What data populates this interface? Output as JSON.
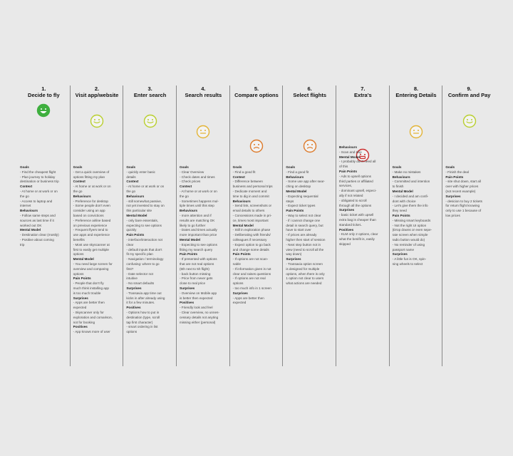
{
  "colors": {
    "divider": "#888888",
    "face_positive": "#3faf3f",
    "face_content": "#b9cf2e",
    "face_neutral": "#e3b437",
    "face_worried": "#dd7a2a",
    "face_negative": "#cc2f2f"
  },
  "columns": [
    {
      "number": "1.",
      "title": "Decide to fly",
      "mood": "very-happy",
      "notes": [
        {
          "h": true,
          "text": "Goals"
        },
        {
          "h": false,
          "text": "- Find the cheapest flight"
        },
        {
          "h": false,
          "text": "- Plan journey to holiday"
        },
        {
          "h": false,
          "text": "destination or business trip"
        },
        {
          "h": true,
          "text": "Context"
        },
        {
          "h": false,
          "text": "- At home or at work or on"
        },
        {
          "h": false,
          "text": "the go"
        },
        {
          "h": false,
          "text": "- Access to laptop and"
        },
        {
          "h": false,
          "text": "internet"
        },
        {
          "h": true,
          "text": "Behaviours"
        },
        {
          "h": false,
          "text": "- Follow same steps and"
        },
        {
          "h": false,
          "text": "sources as last time if it"
        },
        {
          "h": false,
          "text": "worked out OK"
        },
        {
          "h": true,
          "text": "Mental Model"
        },
        {
          "h": false,
          "text": "- Destination clear (mostly)"
        },
        {
          "h": false,
          "text": "- Positive about coming"
        },
        {
          "h": false,
          "text": "trip"
        }
      ]
    },
    {
      "number": "2.",
      "title": "Visit app/website",
      "mood": "happy",
      "notes": [
        {
          "h": true,
          "text": "Goals"
        },
        {
          "h": false,
          "text": "- Get a quick overview of"
        },
        {
          "h": false,
          "text": "options fitting my plan"
        },
        {
          "h": true,
          "text": "Context"
        },
        {
          "h": false,
          "text": "- At home or at work or on"
        },
        {
          "h": false,
          "text": "the go"
        },
        {
          "h": true,
          "text": "Behaviours"
        },
        {
          "h": false,
          "text": "- Preference for desktop"
        },
        {
          "h": false,
          "text": "- Some people don't even"
        },
        {
          "h": false,
          "text": "consider using an app"
        },
        {
          "h": false,
          "text": "based on convictions"
        },
        {
          "h": false,
          "text": "- Preference airline based"
        },
        {
          "h": false,
          "text": "on previous experience"
        },
        {
          "h": false,
          "text": "- Frequent flyers tend to"
        },
        {
          "h": false,
          "text": "use apps and experience"
        },
        {
          "h": false,
          "text": "benefits"
        },
        {
          "h": false,
          "text": "- Most use skyscanner at"
        },
        {
          "h": false,
          "text": "first to easily get multiple"
        },
        {
          "h": false,
          "text": "options"
        },
        {
          "h": true,
          "text": "Mental Model"
        },
        {
          "h": false,
          "text": "- You need large screen for"
        },
        {
          "h": false,
          "text": "overview and comparing"
        },
        {
          "h": false,
          "text": "options"
        },
        {
          "h": true,
          "text": "Pain Points"
        },
        {
          "h": false,
          "text": "- People that don't fly"
        },
        {
          "h": false,
          "text": "much think installing app"
        },
        {
          "h": false,
          "text": "is too much trouble"
        },
        {
          "h": true,
          "text": "Surprises"
        },
        {
          "h": false,
          "text": "- Apps are better then"
        },
        {
          "h": false,
          "text": "expected"
        },
        {
          "h": false,
          "text": "- Skyscanner only for"
        },
        {
          "h": false,
          "text": "exploration and comarison,"
        },
        {
          "h": false,
          "text": "not for booking"
        },
        {
          "h": true,
          "text": "Positives"
        },
        {
          "h": false,
          "text": "- App knows more of user"
        }
      ]
    },
    {
      "number": "3.",
      "title": "Enter search",
      "mood": "happy",
      "notes": [
        {
          "h": true,
          "text": "Goals"
        },
        {
          "h": false,
          "text": "- quickly enter basic"
        },
        {
          "h": false,
          "text": "details"
        },
        {
          "h": true,
          "text": "Context"
        },
        {
          "h": false,
          "text": "- At home or at work or on"
        },
        {
          "h": false,
          "text": "the go"
        },
        {
          "h": true,
          "text": "Behaviours"
        },
        {
          "h": false,
          "text": "- still somewhat passive,"
        },
        {
          "h": false,
          "text": "not yet invested to stay on"
        },
        {
          "h": false,
          "text": "this particular site"
        },
        {
          "h": true,
          "text": "Mental Model"
        },
        {
          "h": false,
          "text": "- only bare essentials,"
        },
        {
          "h": false,
          "text": "expecting to see options"
        },
        {
          "h": false,
          "text": "quickly"
        },
        {
          "h": true,
          "text": "Pain Points"
        },
        {
          "h": false,
          "text": "- interface/interaction not"
        },
        {
          "h": false,
          "text": "clear"
        },
        {
          "h": false,
          "text": "- default inputs that don't"
        },
        {
          "h": false,
          "text": "fit my specific plan"
        },
        {
          "h": false,
          "text": "- Navigation / terminology"
        },
        {
          "h": false,
          "text": "confusing: where to go"
        },
        {
          "h": false,
          "text": "first?"
        },
        {
          "h": false,
          "text": "- Date selector not"
        },
        {
          "h": false,
          "text": "intuitive"
        },
        {
          "h": false,
          "text": "- No smart defaults"
        },
        {
          "h": true,
          "text": "Surprises"
        },
        {
          "h": false,
          "text": "- Transavia app time out"
        },
        {
          "h": false,
          "text": "kicks in after already using"
        },
        {
          "h": false,
          "text": "it for a few minutes."
        },
        {
          "h": true,
          "text": "Positives"
        },
        {
          "h": false,
          "text": "- Options how to put in"
        },
        {
          "h": false,
          "text": "destination (type, scroll"
        },
        {
          "h": false,
          "text": "tap first character)"
        },
        {
          "h": false,
          "text": "- smart ordering in list"
        },
        {
          "h": false,
          "text": "options"
        }
      ]
    },
    {
      "number": "4.",
      "title": "Search results",
      "mood": "neutral",
      "notes": [
        {
          "h": true,
          "text": "Goals"
        },
        {
          "h": false,
          "text": "- Clear Overview"
        },
        {
          "h": false,
          "text": "- Check dates and times"
        },
        {
          "h": false,
          "text": "- Check prices"
        },
        {
          "h": true,
          "text": "Context"
        },
        {
          "h": false,
          "text": "- At home or at work or on"
        },
        {
          "h": false,
          "text": "the go"
        },
        {
          "h": false,
          "text": "- Sometimes happens mul-"
        },
        {
          "h": false,
          "text": "tiple times until this step"
        },
        {
          "h": true,
          "text": "Behaviours"
        },
        {
          "h": false,
          "text": "- more attention and if"
        },
        {
          "h": false,
          "text": "results are matching OK"
        },
        {
          "h": false,
          "text": "likely to go further"
        },
        {
          "h": false,
          "text": "- Dates and times actually"
        },
        {
          "h": false,
          "text": "more important than price"
        },
        {
          "h": true,
          "text": "Mental Model"
        },
        {
          "h": false,
          "text": "- Expecting to see options"
        },
        {
          "h": false,
          "text": "fitting my search query"
        },
        {
          "h": true,
          "text": "Pain Points"
        },
        {
          "h": false,
          "text": "- If presented with options"
        },
        {
          "h": false,
          "text": "that are not real options"
        },
        {
          "h": false,
          "text": "(5th next to 5h flight)"
        },
        {
          "h": false,
          "text": "- back button missing"
        },
        {
          "h": false,
          "text": "- Price from never gets"
        },
        {
          "h": false,
          "text": "close to real price"
        },
        {
          "h": true,
          "text": "Surprises"
        },
        {
          "h": false,
          "text": "- Overview on Mobile app"
        },
        {
          "h": false,
          "text": "is better then expected"
        },
        {
          "h": true,
          "text": "Positives"
        },
        {
          "h": false,
          "text": "- Friendly look and feel"
        },
        {
          "h": false,
          "text": "- Clear overview, no unnes-"
        },
        {
          "h": false,
          "text": "cessary details not anyting"
        },
        {
          "h": false,
          "text": "missing either (personal)"
        }
      ]
    },
    {
      "number": "5.",
      "title": "Compare options",
      "mood": "worried",
      "notes": [
        {
          "h": true,
          "text": "Goals"
        },
        {
          "h": false,
          "text": "- Find a good fit"
        },
        {
          "h": true,
          "text": "Context"
        },
        {
          "h": false,
          "text": "- Difference between"
        },
        {
          "h": false,
          "text": "business and personal trips"
        },
        {
          "h": false,
          "text": "- Dedicate moment and"
        },
        {
          "h": false,
          "text": "time to dig in and commit"
        },
        {
          "h": true,
          "text": "Behaviours"
        },
        {
          "h": false,
          "text": "- Send link, screenshots or"
        },
        {
          "h": false,
          "text": "email details to others"
        },
        {
          "h": false,
          "text": "- Concessions made in pri-"
        },
        {
          "h": false,
          "text": "ce, times most important"
        },
        {
          "h": true,
          "text": "Mental Model"
        },
        {
          "h": false,
          "text": "- Still in exploration phase"
        },
        {
          "h": false,
          "text": "- Deliberating with friends/"
        },
        {
          "h": false,
          "text": "colleagues if necessary"
        },
        {
          "h": false,
          "text": "- Expect option to go back"
        },
        {
          "h": false,
          "text": "and change some details"
        },
        {
          "h": true,
          "text": "Pain Points"
        },
        {
          "h": false,
          "text": "- If options are not scan-"
        },
        {
          "h": false,
          "text": "nable"
        },
        {
          "h": false,
          "text": "- If information given is not"
        },
        {
          "h": false,
          "text": "clear and raises questions"
        },
        {
          "h": false,
          "text": "- If options are not real"
        },
        {
          "h": false,
          "text": "options"
        },
        {
          "h": false,
          "text": "- too much info in 1 screen"
        },
        {
          "h": true,
          "text": "Surprises"
        },
        {
          "h": false,
          "text": "- Apps are better then"
        },
        {
          "h": false,
          "text": "expected"
        }
      ]
    },
    {
      "number": "6.",
      "title": "Select flights",
      "mood": "worried",
      "notes": [
        {
          "h": true,
          "text": "Goals"
        },
        {
          "h": false,
          "text": "- Find a good fit"
        },
        {
          "h": true,
          "text": "Behaviours"
        },
        {
          "h": false,
          "text": "- Some use app after sear-"
        },
        {
          "h": false,
          "text": "ching on desktop"
        },
        {
          "h": true,
          "text": "Mental Model"
        },
        {
          "h": false,
          "text": "- Expecting sequential"
        },
        {
          "h": false,
          "text": "steps"
        },
        {
          "h": false,
          "text": "- Expect ticket types"
        },
        {
          "h": true,
          "text": "Pain Points"
        },
        {
          "h": false,
          "text": "- Way to select not clear"
        },
        {
          "h": false,
          "text": "- if i cannot change one"
        },
        {
          "h": false,
          "text": "detail in search query, but"
        },
        {
          "h": false,
          "text": "have to start over"
        },
        {
          "h": false,
          "text": "- If prices are already"
        },
        {
          "h": false,
          "text": "higher then start of session"
        },
        {
          "h": false,
          "text": "- Next step button not in"
        },
        {
          "h": false,
          "text": "view (need to scroll all the"
        },
        {
          "h": false,
          "text": "way down)"
        },
        {
          "h": true,
          "text": "Surprises"
        },
        {
          "h": false,
          "text": "- Transavia option screen"
        },
        {
          "h": false,
          "text": "is designed for multiple"
        },
        {
          "h": false,
          "text": "options, when there is only"
        },
        {
          "h": false,
          "text": "1 option not clear to users"
        },
        {
          "h": false,
          "text": "what actions are needed"
        }
      ]
    },
    {
      "number": "7.",
      "title": "Extra's",
      "mood": "very-unhappy",
      "notes": [
        {
          "h": true,
          "text": "Behaviours"
        },
        {
          "h": false,
          "text": "- Scan and skip"
        },
        {
          "h": true,
          "text": "Mental Model"
        },
        {
          "h": false,
          "text": "- I probably don't need all"
        },
        {
          "h": false,
          "text": "of this"
        },
        {
          "h": true,
          "text": "Pain Points"
        },
        {
          "h": false,
          "text": "- Ads to upsell options"
        },
        {
          "h": false,
          "text": "third parties or affiliated"
        },
        {
          "h": false,
          "text": "services,"
        },
        {
          "h": false,
          "text": "- dominant upsell, especi-"
        },
        {
          "h": false,
          "text": "ally if not related"
        },
        {
          "h": false,
          "text": "- obligated to scroll"
        },
        {
          "h": false,
          "text": "through all the options"
        },
        {
          "h": true,
          "text": "Surprises"
        },
        {
          "h": false,
          "text": "- basic ticket with upsell"
        },
        {
          "h": false,
          "text": "extra bag is cheaper than"
        },
        {
          "h": false,
          "text": "standard ticket.."
        },
        {
          "h": true,
          "text": "Positives"
        },
        {
          "h": false,
          "text": "- KLM only 2 options, clear"
        },
        {
          "h": false,
          "text": "what the benifit is, easily"
        },
        {
          "h": false,
          "text": "skipped"
        }
      ]
    },
    {
      "number": "8.",
      "title": "Entering Details",
      "mood": "neutral",
      "notes": [
        {
          "h": true,
          "text": "Goals"
        },
        {
          "h": false,
          "text": "- Make no mistakes"
        },
        {
          "h": true,
          "text": "Behaviours"
        },
        {
          "h": false,
          "text": "- Committed and intention"
        },
        {
          "h": false,
          "text": "to finish"
        },
        {
          "h": true,
          "text": "Mental Model"
        },
        {
          "h": false,
          "text": "- I decided and am confi-"
        },
        {
          "h": false,
          "text": "dont with choice"
        },
        {
          "h": false,
          "text": "- Let's give them the info"
        },
        {
          "h": false,
          "text": "they need"
        },
        {
          "h": true,
          "text": "Pain Points"
        },
        {
          "h": false,
          "text": "- Missing smart keyboards"
        },
        {
          "h": false,
          "text": "- Not the right UI option"
        },
        {
          "h": false,
          "text": "(Drop downs or even sepe-"
        },
        {
          "h": false,
          "text": "rate screen when simple"
        },
        {
          "h": false,
          "text": "radio button would do)"
        },
        {
          "h": false,
          "text": "- No reminder of using"
        },
        {
          "h": false,
          "text": "passport name"
        },
        {
          "h": true,
          "text": "Surprises"
        },
        {
          "h": false,
          "text": "- A little fun is OK, spin-"
        },
        {
          "h": false,
          "text": "ning wheels to select"
        }
      ]
    },
    {
      "number": "9.",
      "title": "Confirm and Pay",
      "mood": "happy",
      "notes": [
        {
          "h": true,
          "text": "Goals"
        },
        {
          "h": false,
          "text": "- Finish the deal"
        },
        {
          "h": true,
          "text": "Pain Points"
        },
        {
          "h": false,
          "text": "- site shut down, start all"
        },
        {
          "h": false,
          "text": "over with higher prices"
        },
        {
          "h": false,
          "text": "(not recent example)"
        },
        {
          "h": true,
          "text": "Surprises"
        },
        {
          "h": false,
          "text": "- desicion to buy 2 tickets"
        },
        {
          "h": false,
          "text": "for return flight knowing"
        },
        {
          "h": false,
          "text": "only to use 1 because of"
        },
        {
          "h": false,
          "text": "low prices"
        }
      ]
    }
  ]
}
